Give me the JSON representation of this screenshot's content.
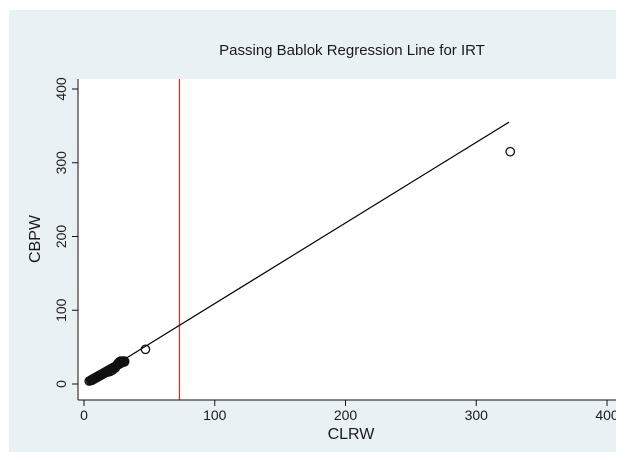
{
  "chart_data": {
    "type": "scatter",
    "title": "Passing Bablok Regression Line for IRT",
    "xlabel": "CLRW",
    "ylabel": "CBPW",
    "xlim": [
      0,
      400
    ],
    "ylim": [
      0,
      400
    ],
    "x_ticks": [
      "0",
      "100",
      "200",
      "300",
      "400"
    ],
    "y_ticks": [
      "0",
      "100",
      "200",
      "300",
      "400"
    ],
    "grid": false,
    "legend": "none",
    "scatter_points": [
      {
        "x": 4,
        "y": 4
      },
      {
        "x": 5,
        "y": 5
      },
      {
        "x": 6,
        "y": 5
      },
      {
        "x": 6,
        "y": 6
      },
      {
        "x": 7,
        "y": 6
      },
      {
        "x": 7,
        "y": 7
      },
      {
        "x": 8,
        "y": 7
      },
      {
        "x": 8,
        "y": 8
      },
      {
        "x": 9,
        "y": 8
      },
      {
        "x": 9,
        "y": 9
      },
      {
        "x": 10,
        "y": 9
      },
      {
        "x": 10,
        "y": 10
      },
      {
        "x": 11,
        "y": 10
      },
      {
        "x": 11,
        "y": 11
      },
      {
        "x": 12,
        "y": 11
      },
      {
        "x": 12,
        "y": 12
      },
      {
        "x": 13,
        "y": 12
      },
      {
        "x": 13,
        "y": 13
      },
      {
        "x": 14,
        "y": 13
      },
      {
        "x": 14,
        "y": 14
      },
      {
        "x": 15,
        "y": 14
      },
      {
        "x": 15,
        "y": 15
      },
      {
        "x": 16,
        "y": 15
      },
      {
        "x": 16,
        "y": 16
      },
      {
        "x": 17,
        "y": 17
      },
      {
        "x": 18,
        "y": 16
      },
      {
        "x": 18,
        "y": 18
      },
      {
        "x": 19,
        "y": 19
      },
      {
        "x": 20,
        "y": 17
      },
      {
        "x": 20,
        "y": 20
      },
      {
        "x": 21,
        "y": 21
      },
      {
        "x": 22,
        "y": 19
      },
      {
        "x": 22,
        "y": 22
      },
      {
        "x": 23,
        "y": 23
      },
      {
        "x": 24,
        "y": 22
      },
      {
        "x": 24,
        "y": 24
      },
      {
        "x": 25,
        "y": 25
      },
      {
        "x": 26,
        "y": 26
      },
      {
        "x": 26,
        "y": 28
      },
      {
        "x": 27,
        "y": 27
      },
      {
        "x": 27,
        "y": 30
      },
      {
        "x": 28,
        "y": 28
      },
      {
        "x": 28,
        "y": 31
      },
      {
        "x": 29,
        "y": 29
      },
      {
        "x": 29,
        "y": 31
      },
      {
        "x": 30,
        "y": 30
      },
      {
        "x": 30,
        "y": 31
      },
      {
        "x": 31,
        "y": 30
      },
      {
        "x": 31,
        "y": 31
      },
      {
        "x": 47,
        "y": 47
      },
      {
        "x": 326,
        "y": 315
      }
    ],
    "regression_line": {
      "x": [
        3,
        325
      ],
      "y": [
        3,
        355
      ],
      "color": "#000000"
    },
    "reference_line": {
      "x": 73,
      "orientation": "vertical",
      "color": "#e0281e"
    },
    "marker": "hollow-circle"
  }
}
